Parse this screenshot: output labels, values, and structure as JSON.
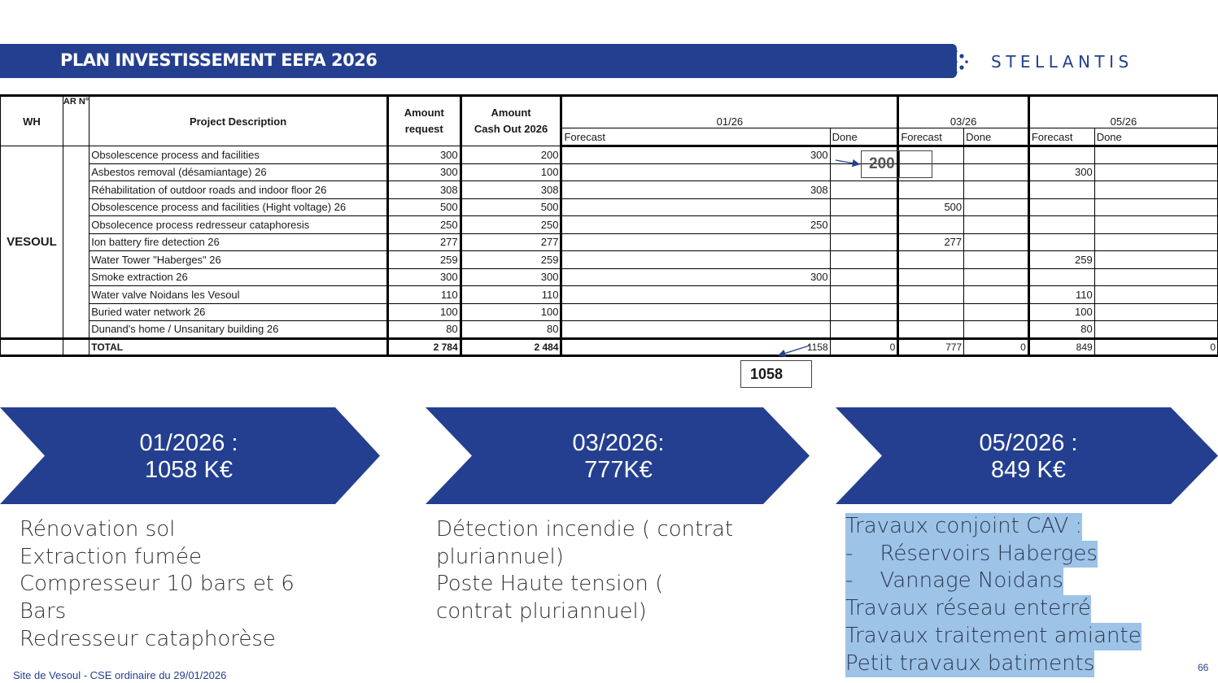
{
  "header": {
    "title": "PLAN INVESTISSEMENT EEFA 2026",
    "logo": "STELLANTIS"
  },
  "table": {
    "col_wh": "WH",
    "col_ar": "AR N°",
    "col_desc": "Project Description",
    "col_amount_request": "Amount request",
    "col_amount_cashout_1": "Amount",
    "col_amount_cashout_2": "Cash Out 2026",
    "periods": [
      "01/26",
      "03/26",
      "05/26"
    ],
    "forecast_label": "Forecast",
    "done_label": "Done",
    "site": "VESOUL",
    "rows": [
      {
        "desc": "Obsolescence process and facilities",
        "request": "300",
        "cashout": "200",
        "f01": "300",
        "d01": "",
        "f03": "",
        "d03": "",
        "f05": "",
        "d05": ""
      },
      {
        "desc": "Asbestos removal (désamiantage) 26",
        "request": "300",
        "cashout": "100",
        "f01": "",
        "d01": "",
        "f03": "",
        "d03": "",
        "f05": "300",
        "d05": ""
      },
      {
        "desc": "Réhabilitation of outdoor roads and indoor floor 26",
        "request": "308",
        "cashout": "308",
        "f01": "308",
        "d01": "",
        "f03": "",
        "d03": "",
        "f05": "",
        "d05": ""
      },
      {
        "desc": "Obsolescence process and facilities (Hight voltage) 26",
        "request": "500",
        "cashout": "500",
        "f01": "",
        "d01": "",
        "f03": "500",
        "d03": "",
        "f05": "",
        "d05": ""
      },
      {
        "desc": "Obsolecence process redresseur cataphoresis",
        "request": "250",
        "cashout": "250",
        "f01": "250",
        "d01": "",
        "f03": "",
        "d03": "",
        "f05": "",
        "d05": ""
      },
      {
        "desc": "Ion battery fire detection 26",
        "request": "277",
        "cashout": "277",
        "f01": "",
        "d01": "",
        "f03": "277",
        "d03": "",
        "f05": "",
        "d05": ""
      },
      {
        "desc": "Water Tower \"Haberges\" 26",
        "request": "259",
        "cashout": "259",
        "f01": "",
        "d01": "",
        "f03": "",
        "d03": "",
        "f05": "259",
        "d05": ""
      },
      {
        "desc": "Smoke extraction 26",
        "request": "300",
        "cashout": "300",
        "f01": "300",
        "d01": "",
        "f03": "",
        "d03": "",
        "f05": "",
        "d05": ""
      },
      {
        "desc": "Water valve Noidans les Vesoul",
        "request": "110",
        "cashout": "110",
        "f01": "",
        "d01": "",
        "f03": "",
        "d03": "",
        "f05": "110",
        "d05": ""
      },
      {
        "desc": "Buried water network 26",
        "request": "100",
        "cashout": "100",
        "f01": "",
        "d01": "",
        "f03": "",
        "d03": "",
        "f05": "100",
        "d05": ""
      },
      {
        "desc": "Dunand's home / Unsanitary building 26",
        "request": "80",
        "cashout": "80",
        "f01": "",
        "d01": "",
        "f03": "",
        "d03": "",
        "f05": "80",
        "d05": ""
      }
    ],
    "total": {
      "label": "TOTAL",
      "request": "2 784",
      "cashout": "2 484",
      "f01": "1158",
      "d01": "0",
      "f03": "777",
      "d03": "0",
      "f05": "849",
      "d05": "0"
    }
  },
  "annotations": {
    "box_a": "200",
    "box_b": "1058"
  },
  "chevrons": [
    {
      "line1": "01/2026 :",
      "line2": "1058 K€"
    },
    {
      "line1": "03/2026:",
      "line2": "777K€"
    },
    {
      "line1": "05/2026 :",
      "line2": "849 K€"
    }
  ],
  "lists": {
    "col1": [
      "Rénovation sol",
      "Extraction fumée",
      "Compresseur 10 bars et 6",
      "Bars",
      "Redresseur cataphorèse"
    ],
    "col2": [
      "Détection incendie ( contrat",
      "pluriannuel)",
      "Poste Haute tension  (",
      "contrat pluriannuel)"
    ],
    "col3": [
      "Travaux conjoint CAV :",
      "-    Réservoirs Haberges",
      "-    Vannage Noidans",
      "Travaux réseau enterré",
      "Travaux traitement amiante",
      "Petit travaux batiments"
    ]
  },
  "footer": {
    "text": "Site de Vesoul - CSE ordinaire du 29/01/2026",
    "page": "66"
  },
  "colors": {
    "brand_blue": "#243f8f",
    "highlight": "#9dc3e6"
  }
}
